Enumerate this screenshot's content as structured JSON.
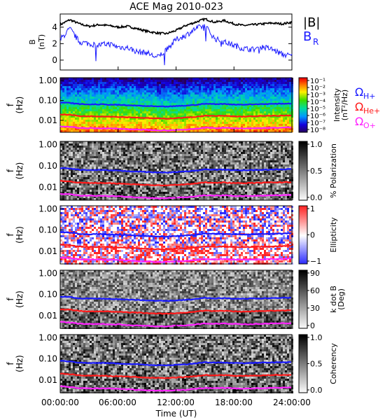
{
  "title": "ACE Mag 2010-023",
  "x_axis": {
    "label": "Time (UT)",
    "ticks": [
      "00:00:00",
      "06:00:00",
      "12:00:00",
      "18:00:00",
      "24:00:00"
    ]
  },
  "freq_ticks": [
    "1.00",
    "0.10",
    "0.01"
  ],
  "freq_axis_label": [
    "f",
    "(Hz)"
  ],
  "colors": {
    "black": "#000000",
    "blue": "#1a1aff",
    "red": "#ff1a1a",
    "magenta": "#ff22ff"
  },
  "chart_data": [
    {
      "type": "line",
      "panel": "field",
      "ylabel": [
        "B",
        "(nT)"
      ],
      "yticks": [
        "4",
        "2",
        "0"
      ],
      "ylim": [
        -1.2,
        5.6
      ],
      "xlim": [
        0,
        24
      ],
      "legend": [
        "|B|",
        "BR"
      ],
      "series": [
        {
          "name": "|B|",
          "color": "#000000",
          "x": [
            0,
            1,
            2,
            3,
            4,
            5,
            6,
            7,
            8,
            9,
            10,
            11,
            12,
            13,
            14,
            15,
            16,
            17,
            18,
            19,
            20,
            21,
            22,
            23,
            24
          ],
          "values": [
            4.3,
            4.9,
            4.4,
            4.1,
            4.3,
            4.2,
            4.0,
            4.1,
            3.8,
            3.5,
            3.3,
            3.2,
            3.6,
            4.2,
            4.6,
            5.0,
            4.6,
            4.8,
            4.4,
            4.2,
            4.3,
            4.4,
            4.5,
            4.4,
            4.6
          ]
        },
        {
          "name": "BR",
          "color": "#1a1aff",
          "x": [
            0,
            1,
            2,
            3,
            4,
            5,
            6,
            7,
            8,
            9,
            10,
            11,
            12,
            13,
            14,
            15,
            16,
            17,
            18,
            19,
            20,
            21,
            22,
            23,
            24
          ],
          "values": [
            2.5,
            3.8,
            2.2,
            2.0,
            1.8,
            2.0,
            1.6,
            1.5,
            1.0,
            0.9,
            0.3,
            1.2,
            2.5,
            3.0,
            3.8,
            4.2,
            2.6,
            2.2,
            1.8,
            1.4,
            1.3,
            1.6,
            1.3,
            0.7,
            0.5
          ]
        }
      ]
    },
    {
      "type": "heatmap",
      "panel": "intensity",
      "ylabel": [
        "f",
        "(Hz)"
      ],
      "yscale": "log",
      "ylim": [
        0.0025,
        1.4
      ],
      "colorbar": {
        "label": [
          "Intensity",
          "(nT²/Hz)"
        ],
        "scale": "rainbow",
        "ticks": [
          "10⁻¹",
          "10⁻²",
          "10⁻³",
          "10⁻⁴",
          "10⁻⁵",
          "10⁻⁶",
          "10⁻⁷",
          "10⁻⁸"
        ]
      },
      "legend": [
        "ΩH+",
        "ΩHe+",
        "ΩO+"
      ]
    },
    {
      "type": "heatmap",
      "panel": "polarization",
      "ylabel": [
        "f",
        "(Hz)"
      ],
      "yscale": "log",
      "colorbar": {
        "label": [
          "% Polarization"
        ],
        "scale": "gray",
        "ticks": [
          "1.0",
          "0.5",
          "0.0"
        ]
      }
    },
    {
      "type": "heatmap",
      "panel": "ellipticity",
      "ylabel": [
        "f",
        "(Hz)"
      ],
      "yscale": "log",
      "colorbar": {
        "label": [
          "Ellipticity"
        ],
        "scale": "blue-white-red",
        "ticks": [
          "1",
          "0",
          "−1"
        ]
      }
    },
    {
      "type": "heatmap",
      "panel": "k_dot_b",
      "ylabel": [
        "f",
        "(Hz)"
      ],
      "yscale": "log",
      "colorbar": {
        "label": [
          "k dot B",
          "(Deg)"
        ],
        "scale": "gray",
        "ticks": [
          "90",
          "60",
          "30",
          "0"
        ]
      }
    },
    {
      "type": "heatmap",
      "panel": "coherency",
      "ylabel": [
        "f",
        "(Hz)"
      ],
      "yscale": "log",
      "colorbar": {
        "label": [
          "Coherency"
        ],
        "scale": "gray",
        "ticks": [
          "1.0",
          "0.5",
          "0.0"
        ]
      }
    }
  ],
  "gyrofrequency_lines": {
    "x": [
      0,
      1,
      2,
      3,
      4,
      5,
      6,
      7,
      8,
      9,
      10,
      11,
      12,
      13,
      14,
      15,
      16,
      17,
      18,
      19,
      20,
      21,
      22,
      23,
      24
    ],
    "series": [
      {
        "name": "ΩH+",
        "color": "#1a1aff",
        "values": [
          0.08,
          0.075,
          0.066,
          0.063,
          0.064,
          0.062,
          0.06,
          0.057,
          0.055,
          0.052,
          0.05,
          0.049,
          0.052,
          0.055,
          0.06,
          0.068,
          0.066,
          0.067,
          0.063,
          0.062,
          0.064,
          0.066,
          0.067,
          0.069,
          0.07
        ]
      },
      {
        "name": "ΩHe+",
        "color": "#ff1a1a",
        "values": [
          0.02,
          0.019,
          0.0165,
          0.016,
          0.016,
          0.0155,
          0.015,
          0.0143,
          0.0138,
          0.013,
          0.0125,
          0.0122,
          0.013,
          0.0138,
          0.015,
          0.017,
          0.0165,
          0.0168,
          0.0158,
          0.0155,
          0.016,
          0.0165,
          0.0168,
          0.0172,
          0.0175
        ]
      },
      {
        "name": "ΩO+",
        "color": "#ff22ff",
        "values": [
          0.005,
          0.0047,
          0.0041,
          0.004,
          0.004,
          0.0039,
          0.0038,
          0.0036,
          0.0034,
          0.0033,
          0.0031,
          0.0031,
          0.0033,
          0.0034,
          0.0038,
          0.0042,
          0.0041,
          0.0042,
          0.004,
          0.0039,
          0.004,
          0.0041,
          0.0042,
          0.0043,
          0.0044
        ]
      }
    ]
  }
}
